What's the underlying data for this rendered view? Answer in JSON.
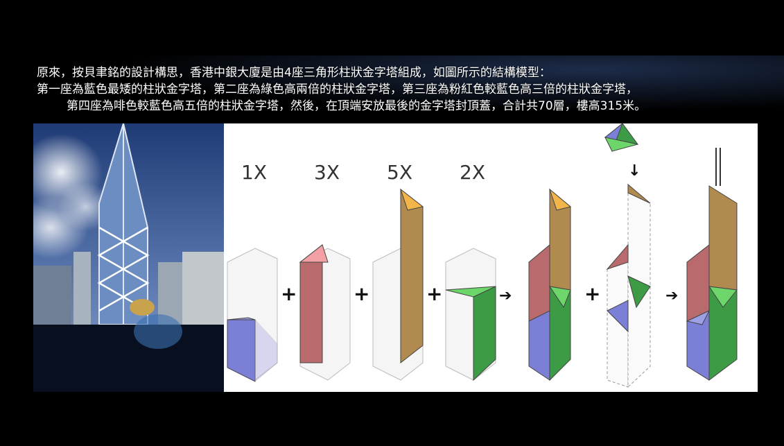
{
  "caption": {
    "line1": "原來，按貝聿銘的設計構思，香港中銀大廈是由4座三角形柱狀金字塔組成，如圖所示的結構模型：",
    "line2": "第一座為藍色最矮的柱狀金字塔，第二座為綠色高兩倍的柱狀金字塔，第三座為粉紅色較藍色高三倍的柱狀金字塔，",
    "line3": "第四座為啡色較藍色高五倍的柱狀金字塔，然後，在頂端安放最後的金字塔封頂蓋，合計共70層，樓高315米。"
  },
  "diagram": {
    "labels": [
      "1X",
      "3X",
      "5X",
      "2X"
    ],
    "operators": {
      "plus": "+",
      "arrow": "➔"
    }
  },
  "colors": {
    "blue": "#7b7fd6",
    "red": "#b86a6c",
    "pink": "#f2a0a3",
    "brown": "#b08a4e",
    "brown_top": "#f2b54a",
    "green": "#3d9a45",
    "green_light": "#6cd66b",
    "ghost": "#ececec"
  }
}
